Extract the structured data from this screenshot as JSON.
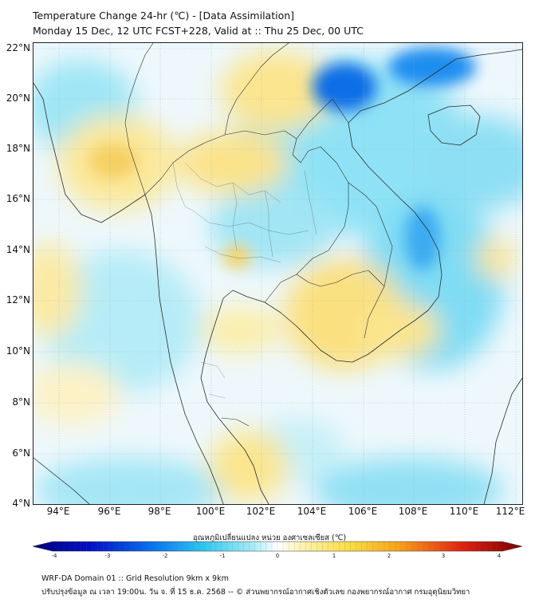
{
  "header": {
    "title": "Temperature Change 24-hr (℃) - [Data Assimilation]",
    "subtitle": "Monday 15 Dec, 12 UTC FCST+228, Valid at :: Thu 25 Dec, 00 UTC"
  },
  "map": {
    "lat_labels": [
      "22°N",
      "20°N",
      "18°N",
      "16°N",
      "14°N",
      "12°N",
      "10°N",
      "8°N",
      "6°N",
      "4°N"
    ],
    "lon_labels": [
      "94°E",
      "96°E",
      "98°E",
      "100°E",
      "102°E",
      "104°E",
      "106°E",
      "108°E",
      "110°E",
      "112°E"
    ],
    "lat_range": [
      4,
      22
    ],
    "lon_range": [
      93,
      112.2
    ]
  },
  "colorbar": {
    "label": "อุณหภูมิเปลี่ยนแปลง หน่วย องศาเซลเซียส (℃)",
    "ticks": [
      "-4",
      "-3",
      "-2",
      "-1",
      "0",
      "1",
      "2",
      "3",
      "4"
    ],
    "range": [
      -4,
      4
    ]
  },
  "footer": {
    "line1": "WRF-DA Domain 01 :: Grid Resolution 9km x 9km",
    "line2": "ปรับปรุงข้อมูล ณ เวลา 19:00น. วัน จ. ที่ 15 ธ.ค. 2568 -- © ส่วนพยากรณ์อากาศเชิงตัวเลข กองพยากรณ์อากาศ กรมอุตุนิยมวิทยา"
  }
}
